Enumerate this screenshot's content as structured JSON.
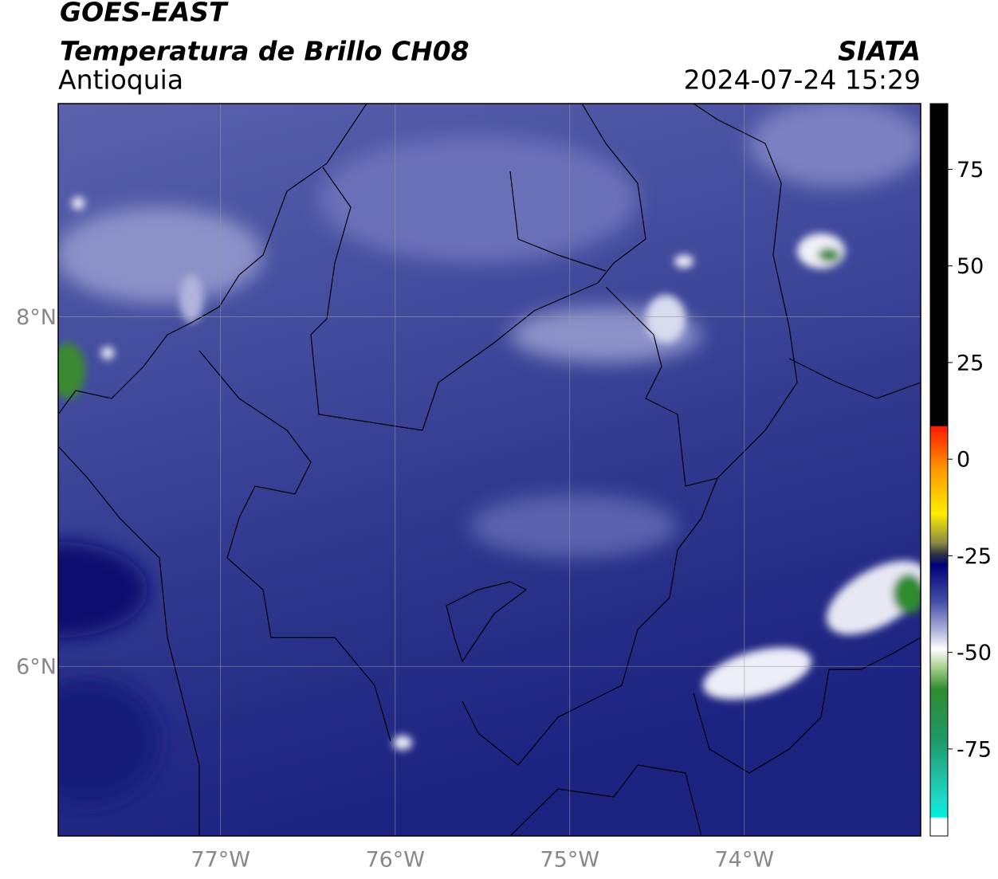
{
  "header": {
    "title": "GOES-EAST",
    "subtitle": "Temperatura de Brillo CH08",
    "region": "Antioquia",
    "source": "SIATA",
    "datetime": "2024-07-24 15:29"
  },
  "map": {
    "lonlim": [
      -77.93,
      -72.99
    ],
    "latlim": [
      5.03,
      9.22
    ],
    "lonticks": [
      {
        "value": -77,
        "label": "77°W"
      },
      {
        "value": -76,
        "label": "76°W"
      },
      {
        "value": -75,
        "label": "75°W"
      },
      {
        "value": -74,
        "label": "74°W"
      }
    ],
    "latticks": [
      {
        "value": 8,
        "label": "8°N"
      },
      {
        "value": 6,
        "label": "6°N"
      }
    ]
  },
  "colorbar": {
    "lim": [
      -97.5,
      92
    ],
    "ticks": [
      75,
      50,
      25,
      0,
      -25,
      -50,
      -75
    ]
  }
}
